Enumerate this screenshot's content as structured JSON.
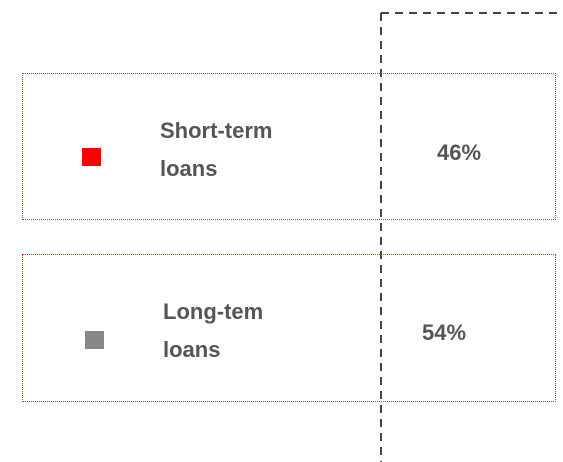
{
  "items": [
    {
      "label": "Short-term loans",
      "value": "46%",
      "color": "#ff0000"
    },
    {
      "label": "Long-tem loans",
      "value": "54%",
      "color": "#888888"
    }
  ]
}
